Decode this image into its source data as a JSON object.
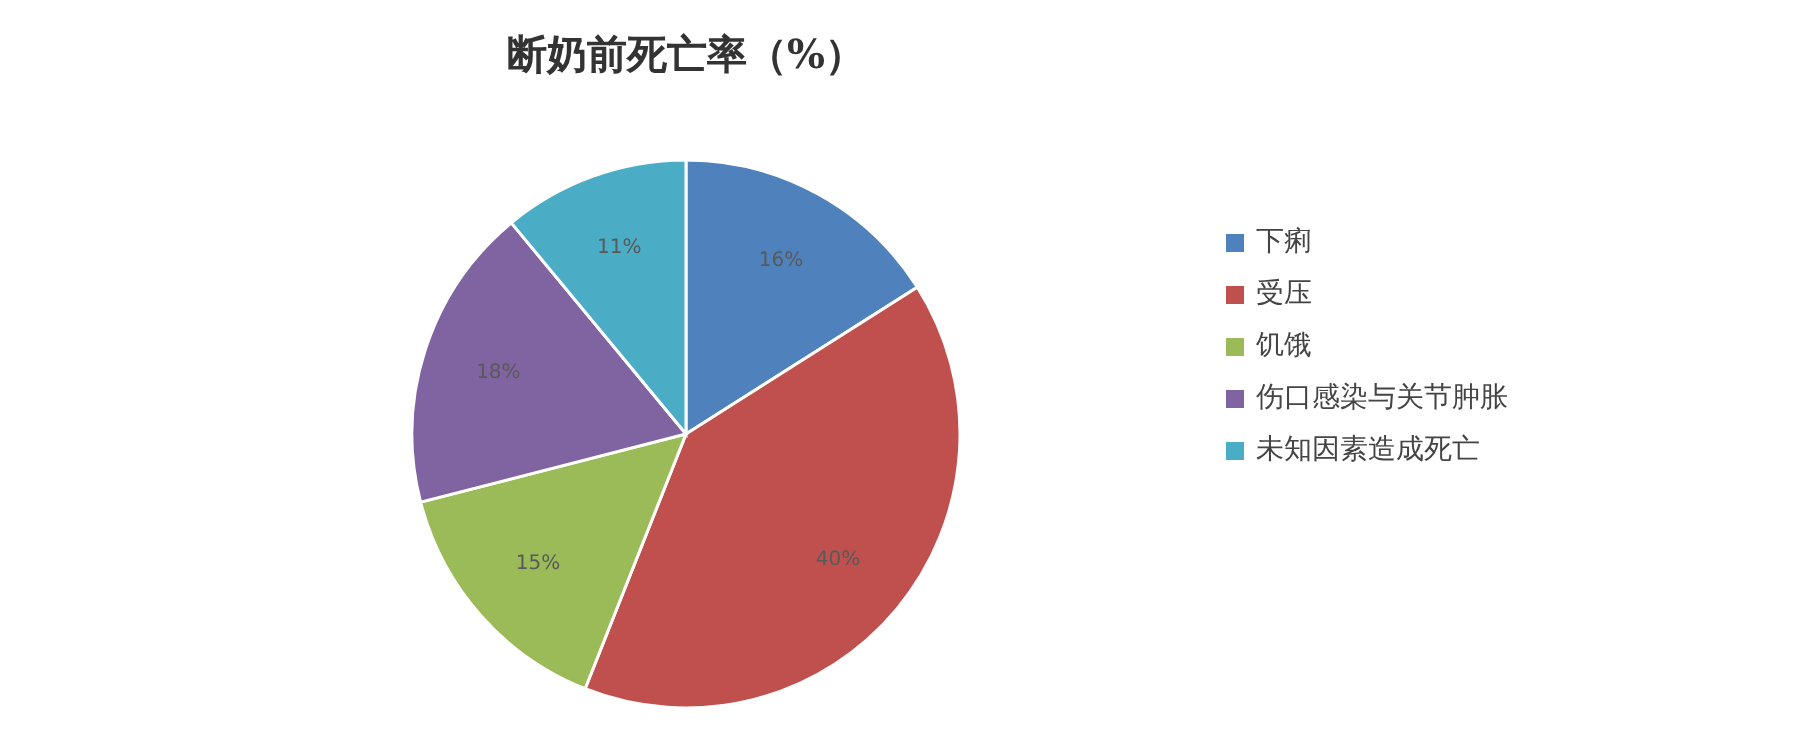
{
  "chart_data": {
    "type": "pie",
    "title": "断奶前死亡率（%）",
    "categories": [
      "下痢",
      "受压",
      "饥饿",
      "伤口感染与关节肿胀",
      "未知因素造成死亡"
    ],
    "values": [
      16,
      40,
      15,
      18,
      11
    ],
    "colors": [
      "#4f81bd",
      "#c0504d",
      "#9bbb59",
      "#8064a2",
      "#4bacc6"
    ],
    "value_labels": [
      "16%",
      "40%",
      "15%",
      "18%",
      "11%"
    ],
    "legend": "right"
  }
}
